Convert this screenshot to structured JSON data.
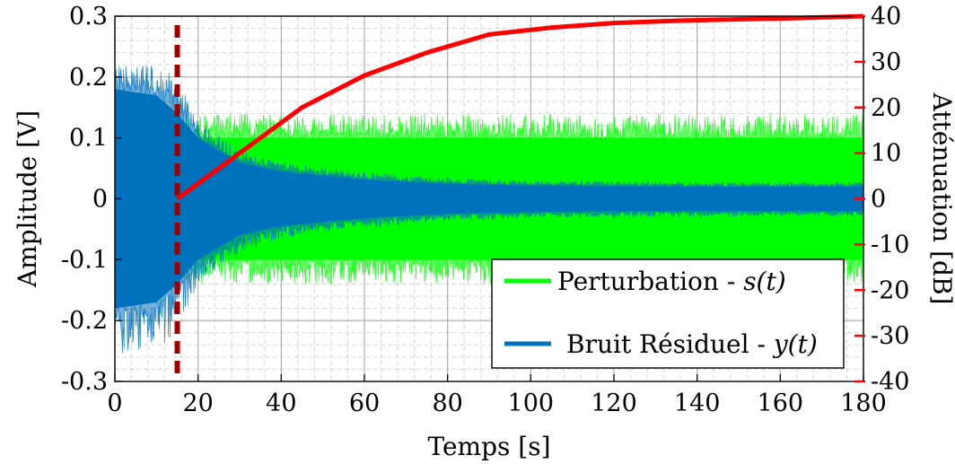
{
  "chart_data": {
    "type": "line",
    "xlabel": "Temps [s]",
    "ylabel": "Amplitude [V]",
    "y2label": "Atténuation [dB]",
    "xlim": [
      0,
      180
    ],
    "ylim": [
      -0.3,
      0.3
    ],
    "y2lim": [
      -40,
      40
    ],
    "xticks": [
      "0",
      "20",
      "40",
      "60",
      "80",
      "100",
      "120",
      "140",
      "160",
      "180"
    ],
    "yticks": [
      "-0.3",
      "-0.2",
      "-0.1",
      "0",
      "0.1",
      "0.2",
      "0.3"
    ],
    "y2ticks": [
      "-40",
      "-30",
      "-20",
      "-10",
      "0",
      "10",
      "20",
      "30",
      "40"
    ],
    "grid": true,
    "legend_position": "bottom-right",
    "legend": [
      {
        "label_text": "Perturbation - ",
        "label_math": "s(t)",
        "color": "#00ff00"
      },
      {
        "label_text": "Bruit Résiduel - ",
        "label_math": "y(t)",
        "color": "#0072bd"
      }
    ],
    "marker_line": {
      "x": 15,
      "color": "#a00000",
      "style": "dashed"
    },
    "series": [
      {
        "color": "#00ff00",
        "kind": "envelope",
        "x": [
          0,
          15,
          20,
          180
        ],
        "peak_upper": [
          0.14,
          0.14,
          0.14,
          0.14
        ],
        "peak_lower": [
          -0.14,
          -0.14,
          -0.14,
          -0.14
        ],
        "core_upper": [
          0.1,
          0.1,
          0.1,
          0.1
        ],
        "core_lower": [
          -0.1,
          -0.1,
          -0.1,
          -0.1
        ]
      },
      {
        "color": "#0072bd",
        "kind": "envelope",
        "x": [
          0,
          10,
          15,
          20,
          30,
          40,
          60,
          80,
          100,
          120,
          140,
          160,
          180
        ],
        "peak_upper": [
          0.22,
          0.22,
          0.2,
          0.13,
          0.08,
          0.06,
          0.045,
          0.035,
          0.03,
          0.03,
          0.028,
          0.028,
          0.028
        ],
        "peak_lower": [
          -0.26,
          -0.25,
          -0.22,
          -0.14,
          -0.09,
          -0.065,
          -0.048,
          -0.037,
          -0.032,
          -0.031,
          -0.03,
          -0.029,
          -0.029
        ],
        "core_upper": [
          0.18,
          0.17,
          0.14,
          0.1,
          0.06,
          0.045,
          0.032,
          0.025,
          0.022,
          0.021,
          0.02,
          0.02,
          0.02
        ],
        "core_lower": [
          -0.18,
          -0.17,
          -0.14,
          -0.1,
          -0.06,
          -0.045,
          -0.032,
          -0.025,
          -0.022,
          -0.021,
          -0.02,
          -0.02,
          -0.02
        ]
      },
      {
        "color": "#ff0000",
        "axis": "right",
        "kind": "line",
        "x": [
          15,
          30,
          45,
          60,
          75,
          90,
          105,
          120,
          135,
          150,
          165,
          180
        ],
        "values": [
          0,
          10,
          20,
          27,
          32,
          36,
          37.5,
          38.5,
          39,
          39.3,
          39.6,
          40
        ]
      }
    ]
  }
}
